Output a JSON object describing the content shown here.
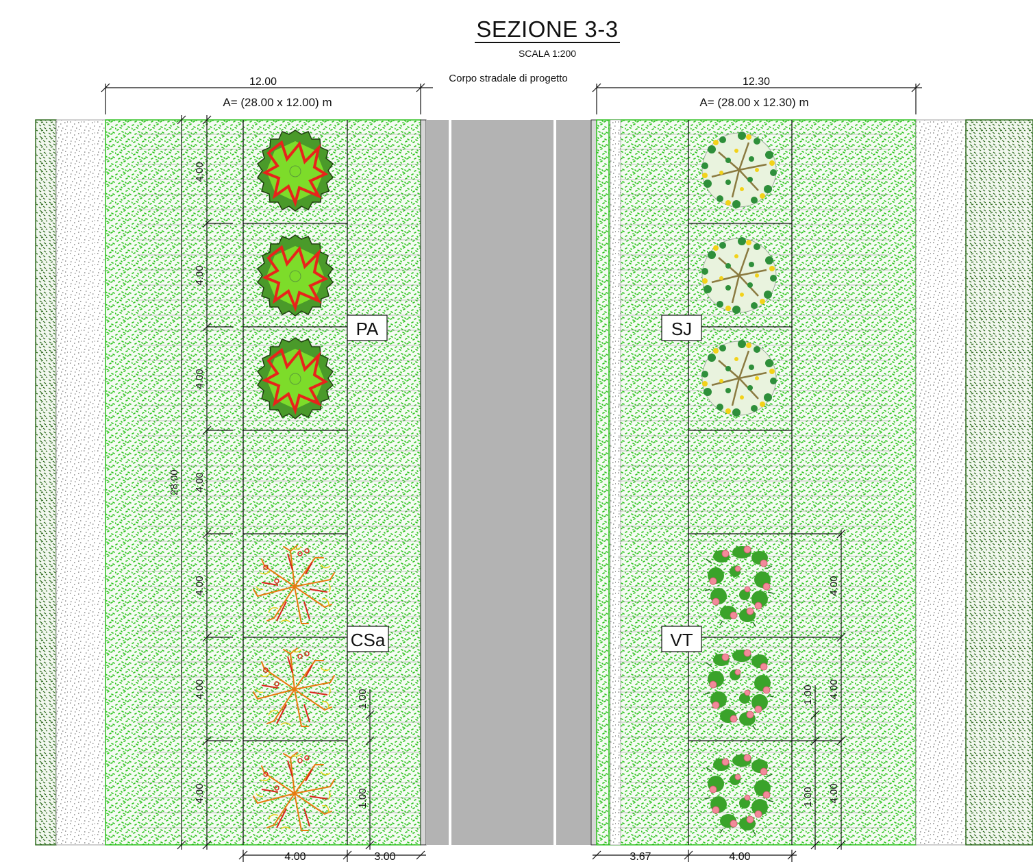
{
  "title": "SEZIONE 3-3",
  "scale": "SCALA 1:200",
  "road_label": "Corpo stradale di progetto",
  "left_area": {
    "width_dim": "12.00",
    "area_label": "A= (28.00 x 12.00) m",
    "total_height_dim": "28.00",
    "module_dims": [
      "4.00",
      "4.00",
      "4.00",
      "4.00",
      "4.00",
      "4.00",
      "4.00"
    ],
    "inner_dims": [
      "1.00",
      "1.00"
    ],
    "bottom_dims": [
      "4.00",
      "3.00"
    ],
    "species": [
      {
        "code": "PA",
        "symbol": "green-tree-symbol"
      },
      {
        "code": "CSa",
        "symbol": "orange-tree-symbol"
      }
    ]
  },
  "right_area": {
    "width_dim": "12.30",
    "area_label": "A= (28.00 x 12.30) m",
    "module_dims": [
      "4.00",
      "4.00",
      "4.00"
    ],
    "inner_dims": [
      "1.00",
      "1.00"
    ],
    "bottom_dims": [
      "3.67",
      "4.00"
    ],
    "species": [
      {
        "code": "SJ",
        "symbol": "yellow-shrub-symbol"
      },
      {
        "code": "VT",
        "symbol": "pink-flower-shrub-symbol"
      }
    ]
  },
  "colors": {
    "grass": "#3ccf2e",
    "road": "#b3b3b3",
    "gravel": "#e8e8e8",
    "hedge": "#2e6b1e"
  }
}
